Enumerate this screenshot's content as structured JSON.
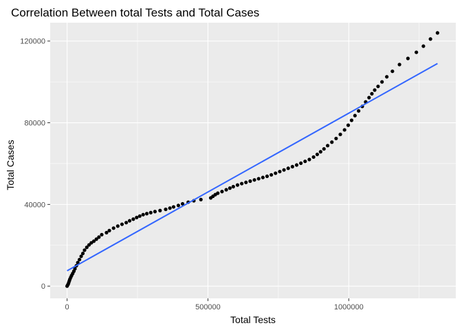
{
  "chart_data": {
    "type": "scatter",
    "title": "Correlation Between total Tests and Total Cases",
    "xlabel": "Total Tests",
    "ylabel": "Total Cases",
    "xlim": [
      -60000,
      1380000
    ],
    "ylim": [
      -6000,
      129000
    ],
    "x_ticks": [
      0,
      500000,
      1000000
    ],
    "x_tick_labels": [
      "0",
      "500000",
      "1000000"
    ],
    "y_ticks": [
      0,
      40000,
      80000,
      120000
    ],
    "y_tick_labels": [
      "0",
      "40000",
      "80000",
      "120000"
    ],
    "grid": true,
    "legend": "none",
    "colors": {
      "panel": "#ebebeb",
      "grid": "#ffffff",
      "points": "#000000",
      "trend": "#3366ff"
    },
    "trend_line": {
      "method": "linear",
      "x": [
        0,
        1315000
      ],
      "y": [
        7500,
        109000
      ]
    },
    "points": [
      {
        "x": 0,
        "y": 0
      },
      {
        "x": 2000,
        "y": 500
      },
      {
        "x": 4000,
        "y": 1000
      },
      {
        "x": 6000,
        "y": 1800
      },
      {
        "x": 8000,
        "y": 2600
      },
      {
        "x": 10000,
        "y": 3400
      },
      {
        "x": 13000,
        "y": 4300
      },
      {
        "x": 16000,
        "y": 5200
      },
      {
        "x": 20000,
        "y": 6200
      },
      {
        "x": 24000,
        "y": 7300
      },
      {
        "x": 28000,
        "y": 8500
      },
      {
        "x": 33000,
        "y": 10000
      },
      {
        "x": 38000,
        "y": 11500
      },
      {
        "x": 44000,
        "y": 13000
      },
      {
        "x": 50000,
        "y": 14600
      },
      {
        "x": 56000,
        "y": 16000
      },
      {
        "x": 62000,
        "y": 17600
      },
      {
        "x": 70000,
        "y": 19000
      },
      {
        "x": 78000,
        "y": 20200
      },
      {
        "x": 86000,
        "y": 21200
      },
      {
        "x": 95000,
        "y": 22000
      },
      {
        "x": 104000,
        "y": 23000
      },
      {
        "x": 113000,
        "y": 24000
      },
      {
        "x": 123000,
        "y": 25200
      },
      {
        "x": 140000,
        "y": 26200
      },
      {
        "x": 150000,
        "y": 27200
      },
      {
        "x": 165000,
        "y": 28400
      },
      {
        "x": 180000,
        "y": 29400
      },
      {
        "x": 195000,
        "y": 30300
      },
      {
        "x": 210000,
        "y": 31100
      },
      {
        "x": 222000,
        "y": 32000
      },
      {
        "x": 235000,
        "y": 32800
      },
      {
        "x": 247000,
        "y": 33600
      },
      {
        "x": 258000,
        "y": 34300
      },
      {
        "x": 270000,
        "y": 35000
      },
      {
        "x": 283000,
        "y": 35500
      },
      {
        "x": 297000,
        "y": 36000
      },
      {
        "x": 312000,
        "y": 36500
      },
      {
        "x": 330000,
        "y": 37000
      },
      {
        "x": 350000,
        "y": 37600
      },
      {
        "x": 365000,
        "y": 38200
      },
      {
        "x": 378000,
        "y": 38800
      },
      {
        "x": 395000,
        "y": 39500
      },
      {
        "x": 410000,
        "y": 40300
      },
      {
        "x": 430000,
        "y": 41100
      },
      {
        "x": 450000,
        "y": 41800
      },
      {
        "x": 475000,
        "y": 42400
      },
      {
        "x": 510000,
        "y": 43200
      },
      {
        "x": 518000,
        "y": 44000
      },
      {
        "x": 526000,
        "y": 44800
      },
      {
        "x": 535000,
        "y": 45500
      },
      {
        "x": 550000,
        "y": 46300
      },
      {
        "x": 565000,
        "y": 47200
      },
      {
        "x": 578000,
        "y": 48000
      },
      {
        "x": 590000,
        "y": 48700
      },
      {
        "x": 605000,
        "y": 49500
      },
      {
        "x": 620000,
        "y": 50200
      },
      {
        "x": 635000,
        "y": 50800
      },
      {
        "x": 650000,
        "y": 51400
      },
      {
        "x": 665000,
        "y": 52000
      },
      {
        "x": 680000,
        "y": 52600
      },
      {
        "x": 695000,
        "y": 53200
      },
      {
        "x": 710000,
        "y": 53800
      },
      {
        "x": 725000,
        "y": 54500
      },
      {
        "x": 740000,
        "y": 55300
      },
      {
        "x": 755000,
        "y": 56100
      },
      {
        "x": 770000,
        "y": 56900
      },
      {
        "x": 785000,
        "y": 57700
      },
      {
        "x": 800000,
        "y": 58500
      },
      {
        "x": 815000,
        "y": 59300
      },
      {
        "x": 830000,
        "y": 60200
      },
      {
        "x": 845000,
        "y": 61100
      },
      {
        "x": 860000,
        "y": 62000
      },
      {
        "x": 875000,
        "y": 63200
      },
      {
        "x": 888000,
        "y": 64500
      },
      {
        "x": 900000,
        "y": 65800
      },
      {
        "x": 912000,
        "y": 67200
      },
      {
        "x": 925000,
        "y": 68800
      },
      {
        "x": 940000,
        "y": 70500
      },
      {
        "x": 955000,
        "y": 72300
      },
      {
        "x": 970000,
        "y": 74300
      },
      {
        "x": 985000,
        "y": 76500
      },
      {
        "x": 998000,
        "y": 78800
      },
      {
        "x": 1010000,
        "y": 81200
      },
      {
        "x": 1022000,
        "y": 83500
      },
      {
        "x": 1035000,
        "y": 85800
      },
      {
        "x": 1048000,
        "y": 88000
      },
      {
        "x": 1060000,
        "y": 90200
      },
      {
        "x": 1072000,
        "y": 92300
      },
      {
        "x": 1082000,
        "y": 94200
      },
      {
        "x": 1092000,
        "y": 96000
      },
      {
        "x": 1104000,
        "y": 97800
      },
      {
        "x": 1118000,
        "y": 100000
      },
      {
        "x": 1135000,
        "y": 102500
      },
      {
        "x": 1155000,
        "y": 105200
      },
      {
        "x": 1180000,
        "y": 108500
      },
      {
        "x": 1210000,
        "y": 111500
      },
      {
        "x": 1240000,
        "y": 114500
      },
      {
        "x": 1265000,
        "y": 117500
      },
      {
        "x": 1290000,
        "y": 121000
      },
      {
        "x": 1315000,
        "y": 124000
      }
    ]
  }
}
